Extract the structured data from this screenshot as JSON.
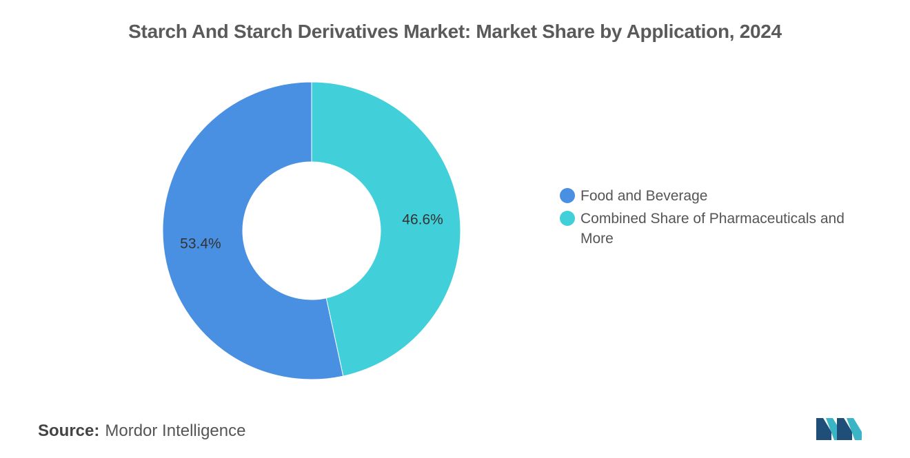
{
  "chart_data": {
    "type": "pie",
    "title": "Starch And Starch Derivatives Market: Market Share by Application, 2024",
    "donut": true,
    "legend_position": "right",
    "slices": [
      {
        "name": "Food and Beverage",
        "value": 53.4,
        "label": "53.4%",
        "color": "#4a90e2"
      },
      {
        "name": "Combined Share of Pharmaceuticals and More",
        "value": 46.6,
        "label": "46.6%",
        "color": "#41d0da"
      }
    ]
  },
  "footer": {
    "source_label": "Source:",
    "source_value": "Mordor Intelligence"
  },
  "logo_icon": "mordor-intelligence-logo-icon"
}
